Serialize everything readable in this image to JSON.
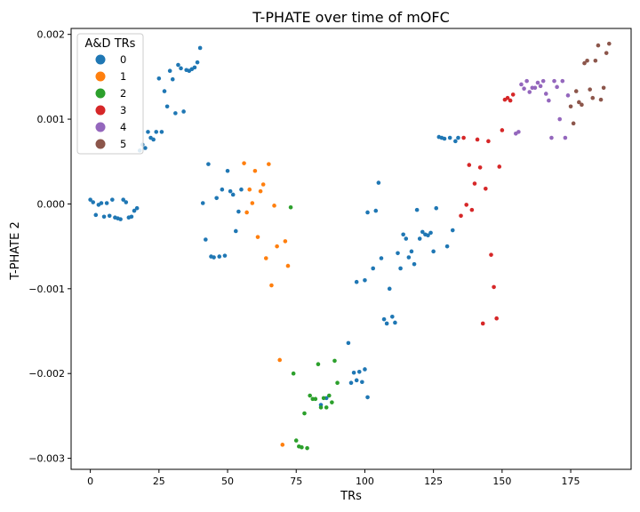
{
  "chart_data": {
    "type": "scatter",
    "title": "T-PHATE over time of mOFC",
    "xlabel": "TRs",
    "ylabel": "T-PHATE 2",
    "xlim": [
      -7,
      197
    ],
    "ylim": [
      -0.00313,
      0.00207
    ],
    "xticks": [
      0,
      25,
      50,
      75,
      100,
      125,
      150,
      175
    ],
    "xtick_labels": [
      "0",
      "25",
      "50",
      "75",
      "100",
      "125",
      "150",
      "175"
    ],
    "yticks": [
      -0.003,
      -0.002,
      -0.001,
      0.0,
      0.001,
      0.002
    ],
    "ytick_labels": [
      "−0.003",
      "−0.002",
      "−0.001",
      "0.000",
      "0.001",
      "0.002"
    ],
    "grid": false,
    "legend": {
      "title": "A&D TRs",
      "placement": "top-left",
      "entries": [
        "0",
        "1",
        "2",
        "3",
        "4",
        "5"
      ]
    },
    "series": [
      {
        "name": "0",
        "color": "#1f77b4",
        "points": [
          [
            0,
            5e-05
          ],
          [
            1,
            2e-05
          ],
          [
            2,
            -0.00013
          ],
          [
            3,
            -1e-05
          ],
          [
            4,
            1e-05
          ],
          [
            5,
            -0.00015
          ],
          [
            6,
            1e-05
          ],
          [
            7,
            -0.00014
          ],
          [
            8,
            5e-05
          ],
          [
            9,
            -0.00016
          ],
          [
            10,
            -0.00017
          ],
          [
            11,
            -0.00018
          ],
          [
            12,
            5e-05
          ],
          [
            13,
            2e-05
          ],
          [
            14,
            -0.00016
          ],
          [
            15,
            -0.00015
          ],
          [
            16,
            -8e-05
          ],
          [
            17,
            -5e-05
          ],
          [
            18,
            0.00063
          ],
          [
            19,
            0.0007
          ],
          [
            20,
            0.00066
          ],
          [
            21,
            0.00085
          ],
          [
            22,
            0.00078
          ],
          [
            23,
            0.00076
          ],
          [
            24,
            0.00085
          ],
          [
            25,
            0.00148
          ],
          [
            26,
            0.00085
          ],
          [
            27,
            0.00133
          ],
          [
            28,
            0.00115
          ],
          [
            29,
            0.00157
          ],
          [
            30,
            0.00147
          ],
          [
            31,
            0.00107
          ],
          [
            32,
            0.00164
          ],
          [
            33,
            0.0016
          ],
          [
            34,
            0.00109
          ],
          [
            35,
            0.00158
          ],
          [
            36,
            0.00157
          ],
          [
            37,
            0.00159
          ],
          [
            38,
            0.00161
          ],
          [
            39,
            0.00167
          ],
          [
            40,
            0.00184
          ],
          [
            41,
            1e-05
          ],
          [
            42,
            -0.00042
          ],
          [
            43,
            0.00047
          ],
          [
            44,
            -0.00062
          ],
          [
            45,
            -0.00063
          ],
          [
            46,
            7e-05
          ],
          [
            47,
            -0.00062
          ],
          [
            48,
            0.00017
          ],
          [
            49,
            -0.00061
          ],
          [
            50,
            0.00039
          ],
          [
            51,
            0.00015
          ],
          [
            52,
            0.00011
          ],
          [
            53,
            -0.00032
          ],
          [
            54,
            -9e-05
          ],
          [
            55,
            0.00017
          ],
          [
            84,
            -0.00237
          ],
          [
            86,
            -0.00229
          ],
          [
            94,
            -0.00164
          ],
          [
            95,
            -0.00211
          ],
          [
            96,
            -0.00199
          ],
          [
            97,
            -0.00208
          ],
          [
            98,
            -0.00198
          ],
          [
            99,
            -0.0021
          ],
          [
            100,
            -0.00195
          ],
          [
            101,
            -0.00228
          ],
          [
            97,
            -0.00092
          ],
          [
            100,
            -0.0009
          ],
          [
            101,
            -0.0001
          ],
          [
            103,
            -0.00076
          ],
          [
            104,
            -8e-05
          ],
          [
            105,
            0.00025
          ],
          [
            106,
            -0.00064
          ],
          [
            107,
            -0.00136
          ],
          [
            108,
            -0.00141
          ],
          [
            109,
            -0.001
          ],
          [
            110,
            -0.00133
          ],
          [
            111,
            -0.0014
          ],
          [
            112,
            -0.00058
          ],
          [
            113,
            -0.00076
          ],
          [
            114,
            -0.00036
          ],
          [
            115,
            -0.00041
          ],
          [
            116,
            -0.00063
          ],
          [
            117,
            -0.00056
          ],
          [
            118,
            -0.00071
          ],
          [
            119,
            -7e-05
          ],
          [
            120,
            -0.00041
          ],
          [
            121,
            -0.00033
          ],
          [
            122,
            -0.00036
          ],
          [
            123,
            -0.00037
          ],
          [
            124,
            -0.00034
          ],
          [
            125,
            -0.00056
          ],
          [
            126,
            -5e-05
          ],
          [
            127,
            0.00079
          ],
          [
            128,
            0.00078
          ],
          [
            129,
            0.00077
          ],
          [
            130,
            -0.0005
          ],
          [
            131,
            0.00078
          ],
          [
            132,
            -0.00031
          ],
          [
            133,
            0.00074
          ],
          [
            134,
            0.00078
          ]
        ]
      },
      {
        "name": "1",
        "color": "#ff7f0e",
        "points": [
          [
            56,
            0.00048
          ],
          [
            57,
            -0.0001
          ],
          [
            58,
            0.00017
          ],
          [
            59,
            1e-05
          ],
          [
            60,
            0.00039
          ],
          [
            61,
            -0.00039
          ],
          [
            62,
            0.00015
          ],
          [
            63,
            0.00023
          ],
          [
            64,
            -0.00064
          ],
          [
            65,
            0.00047
          ],
          [
            66,
            -0.00096
          ],
          [
            67,
            -2e-05
          ],
          [
            68,
            -0.0005
          ],
          [
            69,
            -0.00184
          ],
          [
            70,
            -0.00284
          ],
          [
            71,
            -0.00044
          ],
          [
            72,
            -0.00073
          ]
        ]
      },
      {
        "name": "2",
        "color": "#2ca02c",
        "points": [
          [
            73,
            -4e-05
          ],
          [
            74,
            -0.002
          ],
          [
            75,
            -0.00279
          ],
          [
            76,
            -0.00286
          ],
          [
            77,
            -0.00287
          ],
          [
            78,
            -0.00247
          ],
          [
            79,
            -0.00288
          ],
          [
            80,
            -0.00226
          ],
          [
            81,
            -0.0023
          ],
          [
            82,
            -0.0023
          ],
          [
            83,
            -0.00189
          ],
          [
            84,
            -0.0024
          ],
          [
            85,
            -0.00229
          ],
          [
            86,
            -0.0024
          ],
          [
            87,
            -0.00226
          ],
          [
            88,
            -0.00234
          ],
          [
            89,
            -0.00185
          ],
          [
            90,
            -0.00211
          ]
        ]
      },
      {
        "name": "3",
        "color": "#d62728",
        "points": [
          [
            135,
            -0.00014
          ],
          [
            136,
            0.00078
          ],
          [
            137,
            -1e-05
          ],
          [
            138,
            0.00046
          ],
          [
            139,
            -7e-05
          ],
          [
            140,
            0.00024
          ],
          [
            141,
            0.00076
          ],
          [
            142,
            0.00043
          ],
          [
            143,
            -0.00141
          ],
          [
            144,
            0.00018
          ],
          [
            145,
            0.00074
          ],
          [
            146,
            -0.0006
          ],
          [
            147,
            -0.00098
          ],
          [
            148,
            -0.00135
          ],
          [
            149,
            0.00044
          ],
          [
            150,
            0.00087
          ],
          [
            151,
            0.00123
          ],
          [
            152,
            0.00125
          ],
          [
            153,
            0.00122
          ],
          [
            154,
            0.00129
          ]
        ]
      },
      {
        "name": "4",
        "color": "#9467bd",
        "points": [
          [
            155,
            0.00083
          ],
          [
            156,
            0.00085
          ],
          [
            157,
            0.00141
          ],
          [
            158,
            0.00136
          ],
          [
            159,
            0.00145
          ],
          [
            160,
            0.00132
          ],
          [
            161,
            0.00137
          ],
          [
            162,
            0.00137
          ],
          [
            163,
            0.00143
          ],
          [
            164,
            0.00139
          ],
          [
            165,
            0.00145
          ],
          [
            166,
            0.0013
          ],
          [
            167,
            0.00122
          ],
          [
            168,
            0.00078
          ],
          [
            169,
            0.00145
          ],
          [
            170,
            0.00138
          ],
          [
            171,
            0.001
          ],
          [
            172,
            0.00145
          ],
          [
            173,
            0.00078
          ],
          [
            174,
            0.00128
          ]
        ]
      },
      {
        "name": "5",
        "color": "#8c564b",
        "points": [
          [
            175,
            0.00115
          ],
          [
            176,
            0.00095
          ],
          [
            177,
            0.00133
          ],
          [
            178,
            0.0012
          ],
          [
            179,
            0.00117
          ],
          [
            180,
            0.00166
          ],
          [
            181,
            0.00169
          ],
          [
            182,
            0.00135
          ],
          [
            183,
            0.00125
          ],
          [
            184,
            0.00169
          ],
          [
            185,
            0.00187
          ],
          [
            186,
            0.00123
          ],
          [
            187,
            0.00137
          ],
          [
            188,
            0.00178
          ],
          [
            189,
            0.00189
          ]
        ]
      }
    ]
  }
}
